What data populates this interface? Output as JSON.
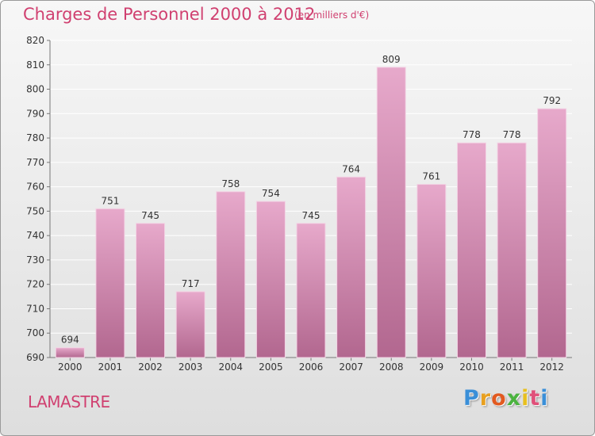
{
  "title": "Charges de Personnel 2000 à 2012",
  "unit_note": "(en milliers d'€)",
  "commune": "LAMASTRE",
  "logo": {
    "text": "Proxiti",
    "letter_colors": [
      "#3a8fd8",
      "#e8a020",
      "#e25a20",
      "#4bb33f",
      "#e8c020",
      "#e0507a",
      "#3a8fd8"
    ]
  },
  "colors": {
    "bar_top": "#e7a9cb",
    "bar_bottom": "#b2678f",
    "text_pink": "#d04070",
    "grid": "#ffffff"
  },
  "chart_data": {
    "type": "bar",
    "categories": [
      "2000",
      "2001",
      "2002",
      "2003",
      "2004",
      "2005",
      "2006",
      "2007",
      "2008",
      "2009",
      "2010",
      "2011",
      "2012"
    ],
    "values": [
      694,
      751,
      745,
      717,
      758,
      754,
      745,
      764,
      809,
      761,
      778,
      778,
      792
    ],
    "ylim": [
      690,
      820
    ],
    "yticks": [
      690,
      700,
      710,
      720,
      730,
      740,
      750,
      760,
      770,
      780,
      790,
      800,
      810,
      820
    ],
    "grid": true,
    "data_labels": true
  }
}
